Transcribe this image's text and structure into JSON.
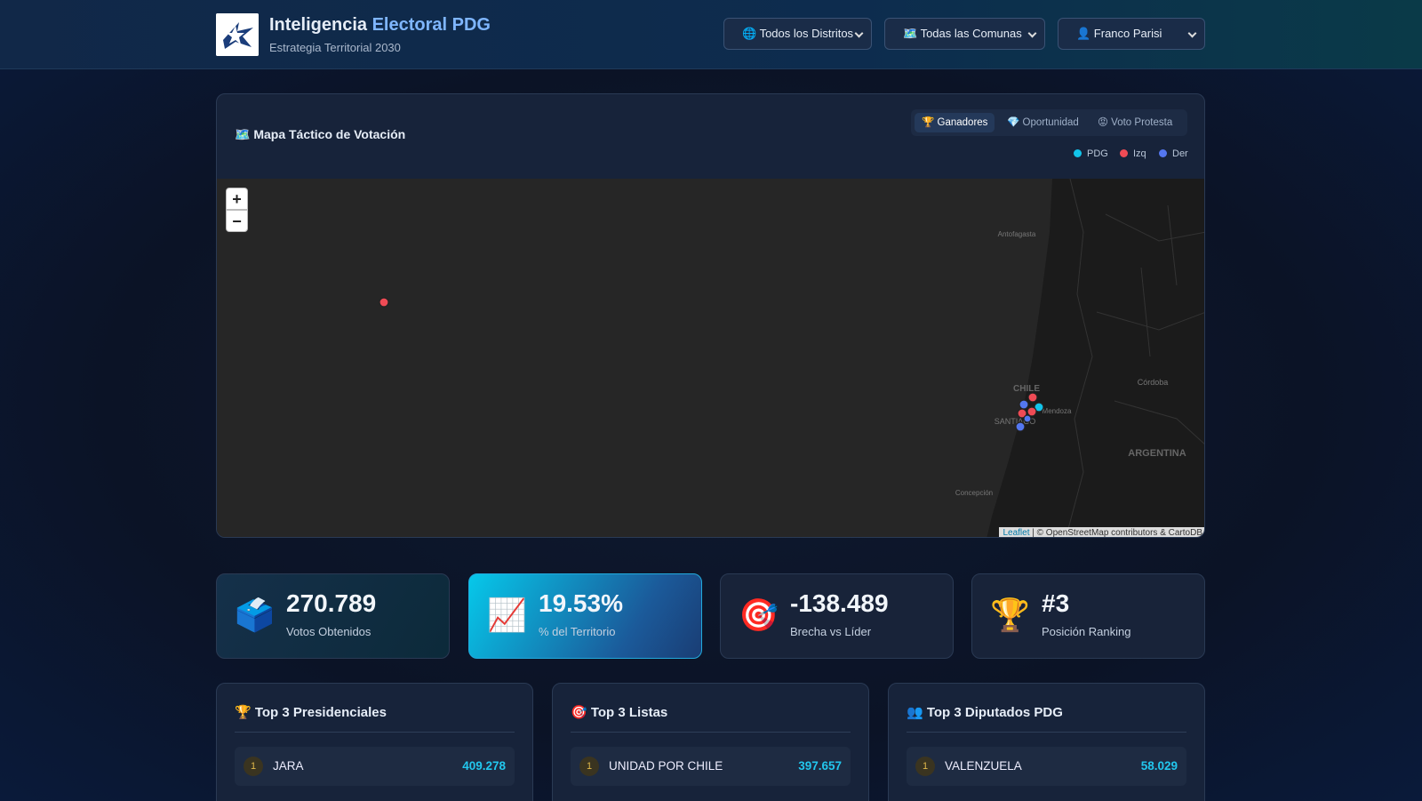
{
  "header": {
    "title_main": "Inteligencia",
    "title_accent": "Electoral PDG",
    "subtitle": "Estrategia Territorial 2030",
    "filters": [
      "🌐 Todos los Distritos",
      "🗺️ Todas las Comunas",
      "👤 Franco Parisi"
    ]
  },
  "map": {
    "title": "🗺️ Mapa Táctico de Votación",
    "tabs": [
      "🏆 Ganadores",
      "💎 Oportunidad",
      "😡 Voto Protesta"
    ],
    "legend": [
      "PDG",
      "Izq",
      "Der"
    ],
    "zoom": [
      "+",
      "−"
    ],
    "labels": [
      "Antofagasta",
      "Córdoba",
      "CHILE",
      "Mendoza",
      "SANTIAGO",
      "ARGENTINA",
      "Concepción"
    ],
    "attribution_link": "Leaflet",
    "attribution_text": "| © OpenStreetMap contributors & CartoDB"
  },
  "kpis": [
    {
      "icon": "🗳️",
      "value": "270.789",
      "label": "Votos Obtenidos"
    },
    {
      "icon": "📈",
      "value": "19.53%",
      "label": "% del Territorio"
    },
    {
      "icon": "🎯",
      "value": "-138.489",
      "label": "Brecha vs Líder"
    },
    {
      "icon": "🏆",
      "value": "#3",
      "label": "Posición Ranking"
    }
  ],
  "panels": [
    {
      "title": "🏆 Top 3 Presidenciales",
      "rows": [
        {
          "rank": "1",
          "name": "JARA",
          "value": "409.278"
        }
      ]
    },
    {
      "title": "🎯 Top 3 Listas",
      "rows": [
        {
          "rank": "1",
          "name": "UNIDAD POR CHILE",
          "value": "397.657"
        }
      ]
    },
    {
      "title": "👥 Top 3 Diputados PDG",
      "rows": [
        {
          "rank": "1",
          "name": "VALENZUELA",
          "value": "58.029"
        }
      ]
    }
  ]
}
